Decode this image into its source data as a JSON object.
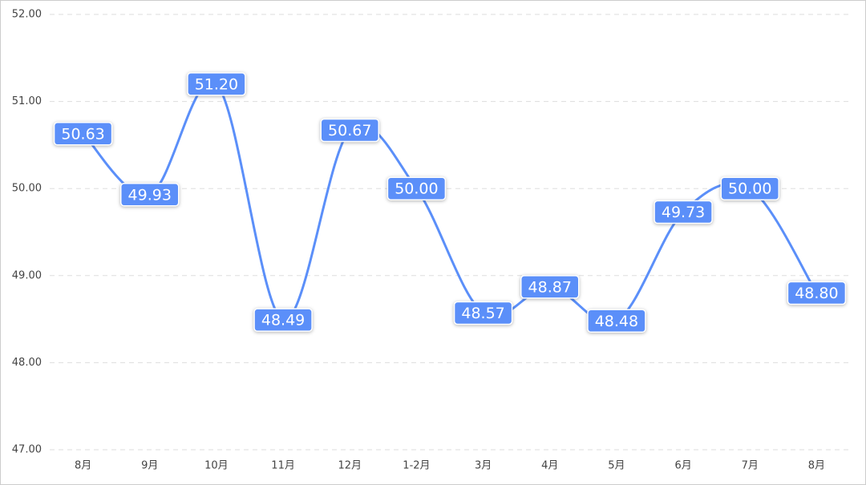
{
  "chart_data": {
    "type": "line",
    "categories": [
      "8月",
      "9月",
      "10月",
      "11月",
      "12月",
      "1-2月",
      "3月",
      "4月",
      "5月",
      "6月",
      "7月",
      "8月"
    ],
    "series": [
      {
        "color": "#5b8ff9",
        "values": [
          50.63,
          49.93,
          51.2,
          48.49,
          50.67,
          50,
          48.57,
          48.87,
          48.48,
          49.73,
          50,
          48.8
        ],
        "value_labels": [
          "50.63",
          "49.93",
          "51.20",
          "48.49",
          "50.67",
          "50.00",
          "48.57",
          "48.87",
          "48.48",
          "49.73",
          "50.00",
          "48.80"
        ]
      }
    ],
    "ylim": [
      47,
      52
    ],
    "yticks": [
      {
        "value": 47,
        "label": "47.00"
      },
      {
        "value": 48,
        "label": "48.00"
      },
      {
        "value": 49,
        "label": "49.00"
      },
      {
        "value": 50,
        "label": "50.00"
      },
      {
        "value": 51,
        "label": "51.00"
      },
      {
        "value": 52,
        "label": "52.00"
      }
    ],
    "grid": true,
    "smooth": true
  }
}
